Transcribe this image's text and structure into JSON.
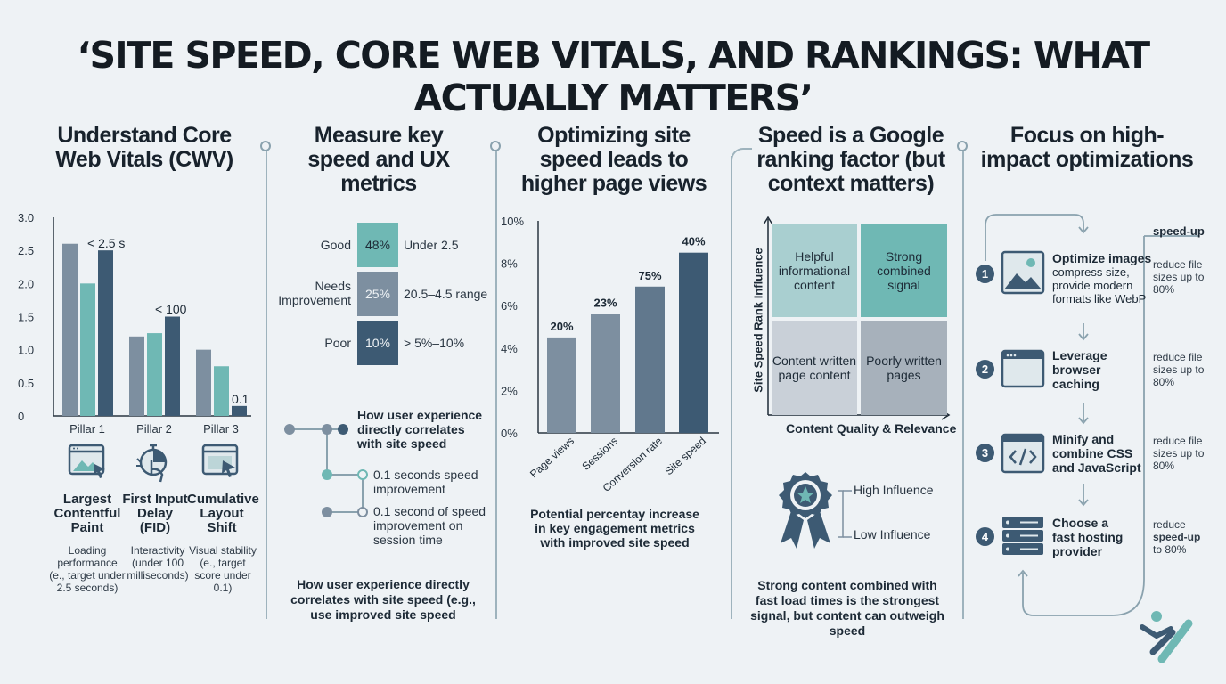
{
  "title": "‘SITE SPEED, CORE WEB VITALS, AND RANKINGS: WHAT ACTUALLY MATTERS’",
  "colors": {
    "dark": "#3d5a73",
    "teal": "#6fb8b4",
    "slate": "#7d8fa0",
    "bg": "#eef2f5"
  },
  "col1": {
    "heading": "Understand Core Web Vitals (CWV)",
    "items": [
      {
        "icon": "browser-image-cursor-icon",
        "name": "Largest Contentful Paint",
        "desc": "Loading performance (e., target under 2.5 seconds)"
      },
      {
        "icon": "hand-timer-icon",
        "name": "First Input Delay (FID)",
        "desc": "Interactivity (under 100 milliseconds)"
      },
      {
        "icon": "browser-cursor-icon",
        "name": "Cumulative Layout Shift",
        "desc": "Visual stability (e., target score under 0.1)"
      }
    ]
  },
  "col2": {
    "heading": "Measure key speed and UX metrics",
    "rows": [
      {
        "label": "Good",
        "value": "48%",
        "range": "Under 2.5",
        "color": "#6fb8b4"
      },
      {
        "label": "Needs Improvement",
        "value": "25%",
        "range": "20.5–4.5 range",
        "color": "#7d8fa0"
      },
      {
        "label": "Poor",
        "value": "10%",
        "range": "> 5%–10%",
        "color": "#3d5a73"
      }
    ],
    "flow": [
      "How user experience directly correlates with site speed",
      "0.1 seconds speed improvement",
      "0.1 second of speed improvement on session time"
    ],
    "caption": "How user experience directly correlates with site speed (e.g., use improved site speed"
  },
  "col3": {
    "heading": "Optimizing site speed leads to higher page views",
    "caption": "Potential percentay increase in key engagement metrics with improved site speed"
  },
  "col4": {
    "heading": "Speed is a Google ranking factor (but context matters)",
    "quadrants": [
      "Helpful informational content",
      "Strong combined signal",
      "Content written page content",
      "Poorly written pages"
    ],
    "y_label": "Site Speed Rank Influence",
    "x_label": "Content Quality & Relevance",
    "legend_high": "High Influence",
    "legend_low": "Low Influence",
    "caption": "Strong content combined with fast load times is the strongest signal, but content can outweigh speed"
  },
  "col5": {
    "heading": "Focus on high-impact optimizations",
    "side_heading": "speed-up",
    "steps": [
      {
        "num": "1",
        "icon": "image-icon",
        "title": "Optimize images",
        "desc": "compress size, provide modern formats like WebP",
        "side": "reduce file sizes up to 80%"
      },
      {
        "num": "2",
        "icon": "browser-window-icon",
        "title": "Leverage browser caching",
        "desc": "",
        "side": "reduce file sizes up to 80%"
      },
      {
        "num": "3",
        "icon": "code-icon",
        "title": "Minify and combine CSS and JavaScript",
        "desc": "",
        "side": "reduce file sizes up to 80%"
      },
      {
        "num": "4",
        "icon": "server-icon",
        "title": "Choose a fast hosting provider",
        "desc": "",
        "side_a": "reduce",
        "side_b": "speed-up",
        "side_c": "to 80%"
      }
    ]
  },
  "chart_data": [
    {
      "type": "bar",
      "categories": [
        "Pillar 1",
        "Pillar 2",
        "Pillar 3"
      ],
      "series": [
        {
          "values": [
            2.6,
            1.2,
            1.0
          ]
        },
        {
          "values": [
            2.0,
            1.25,
            0.75
          ]
        },
        {
          "values": [
            2.5,
            1.5,
            0.15
          ]
        }
      ],
      "ylim": [
        0,
        3.0
      ],
      "yticks": [
        "0",
        "0.5",
        "1.0",
        "1.5",
        "2.0",
        "2.5",
        "3.0"
      ],
      "annotations": [
        "< 2.5 s",
        "< 100",
        "0.1"
      ]
    },
    {
      "type": "bar",
      "categories": [
        "Page views",
        "Sessions",
        "Conversion rate",
        "Site speed"
      ],
      "values": [
        4.5,
        5.6,
        6.9,
        8.5
      ],
      "labels": [
        "20%",
        "23%",
        "75%",
        "40%"
      ],
      "ylim": [
        0,
        10
      ],
      "yticks": [
        "0%",
        "2%",
        "4%",
        "6%",
        "8%",
        "10%"
      ]
    }
  ]
}
